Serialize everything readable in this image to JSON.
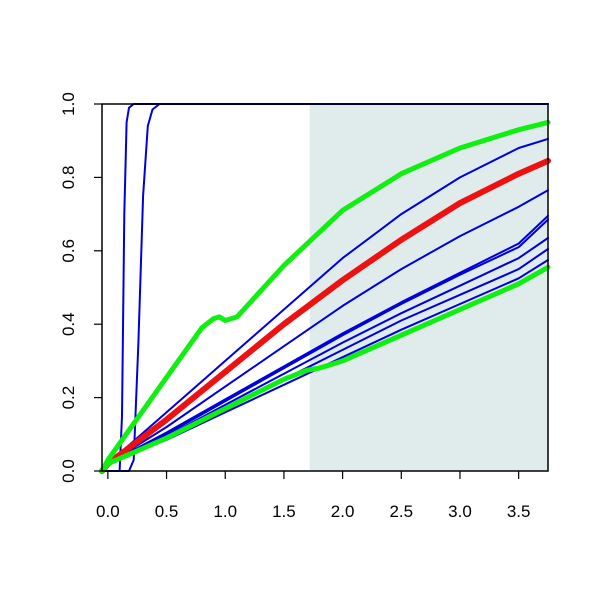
{
  "chart_data": {
    "type": "line",
    "title": "",
    "xlabel": "",
    "ylabel": "",
    "xlim": [
      -0.05,
      3.75
    ],
    "ylim": [
      0.0,
      1.0
    ],
    "x_ticks": [
      0.0,
      0.5,
      1.0,
      1.5,
      2.0,
      2.5,
      3.0,
      3.5
    ],
    "x_tick_labels": [
      "0.0",
      "0.5",
      "1.0",
      "1.5",
      "2.0",
      "2.5",
      "3.0",
      "3.5"
    ],
    "y_ticks": [
      0.0,
      0.2,
      0.4,
      0.6,
      0.8,
      1.0
    ],
    "y_tick_labels": [
      "0.0",
      "0.2",
      "0.4",
      "0.6",
      "0.8",
      "1.0"
    ],
    "grid": false,
    "legend": "none",
    "shaded_region": {
      "x_from": 1.72,
      "x_to": 3.75,
      "color": "#e0ecec"
    },
    "colors": {
      "blue": "#0000dd",
      "red": "#ee1111",
      "green": "#11ee11",
      "axis": "#000000"
    },
    "series": [
      {
        "color": "blue",
        "width": 2,
        "x": [
          -0.05,
          0.1,
          0.12,
          0.14,
          0.16,
          0.18,
          0.22,
          3.75
        ],
        "y": [
          0.0,
          0.0,
          0.15,
          0.7,
          0.95,
          0.99,
          1.0,
          1.0
        ]
      },
      {
        "color": "blue",
        "width": 2,
        "x": [
          -0.05,
          0.18,
          0.22,
          0.26,
          0.3,
          0.34,
          0.38,
          0.44,
          3.75
        ],
        "y": [
          0.0,
          0.0,
          0.03,
          0.35,
          0.75,
          0.94,
          0.985,
          1.0,
          1.0
        ]
      },
      {
        "color": "blue",
        "width": 2,
        "x": [
          -0.05,
          0.0,
          0.5,
          1.0,
          1.5,
          2.0,
          2.5,
          3.0,
          3.5,
          3.75
        ],
        "y": [
          0.0,
          0.02,
          0.16,
          0.3,
          0.44,
          0.58,
          0.7,
          0.8,
          0.88,
          0.905
        ]
      },
      {
        "color": "blue",
        "width": 2,
        "x": [
          -0.05,
          0.0,
          0.5,
          1.0,
          1.5,
          2.0,
          2.5,
          3.0,
          3.5,
          3.75
        ],
        "y": [
          0.0,
          0.02,
          0.12,
          0.23,
          0.34,
          0.45,
          0.55,
          0.64,
          0.72,
          0.765
        ]
      },
      {
        "color": "blue",
        "width": 2,
        "x": [
          -0.05,
          0.0,
          0.5,
          1.0,
          1.5,
          2.0,
          2.5,
          3.0,
          3.5,
          3.75
        ],
        "y": [
          0.0,
          0.02,
          0.105,
          0.195,
          0.285,
          0.375,
          0.46,
          0.54,
          0.62,
          0.695
        ]
      },
      {
        "color": "blue",
        "width": 2,
        "x": [
          -0.05,
          0.0,
          0.5,
          1.0,
          1.5,
          2.0,
          2.5,
          3.0,
          3.5,
          3.75
        ],
        "y": [
          0.0,
          0.02,
          0.1,
          0.19,
          0.28,
          0.37,
          0.455,
          0.535,
          0.61,
          0.685
        ]
      },
      {
        "color": "blue",
        "width": 2,
        "x": [
          -0.05,
          0.0,
          0.5,
          1.0,
          1.5,
          2.0,
          2.5,
          3.0,
          3.5,
          3.75
        ],
        "y": [
          0.0,
          0.02,
          0.095,
          0.18,
          0.265,
          0.35,
          0.43,
          0.505,
          0.58,
          0.635
        ]
      },
      {
        "color": "blue",
        "width": 2,
        "x": [
          -0.05,
          0.0,
          0.5,
          1.0,
          1.5,
          2.0,
          2.5,
          3.0,
          3.5,
          3.75
        ],
        "y": [
          0.0,
          0.02,
          0.09,
          0.17,
          0.25,
          0.33,
          0.41,
          0.48,
          0.55,
          0.605
        ]
      },
      {
        "color": "blue",
        "width": 2,
        "x": [
          -0.05,
          0.0,
          0.5,
          1.0,
          1.5,
          2.0,
          2.5,
          3.0,
          3.5,
          3.75
        ],
        "y": [
          0.0,
          0.02,
          0.085,
          0.16,
          0.235,
          0.31,
          0.385,
          0.455,
          0.525,
          0.575
        ]
      },
      {
        "color": "red",
        "width": 6,
        "x": [
          -0.05,
          0.0,
          0.5,
          1.0,
          1.5,
          2.0,
          2.5,
          3.0,
          3.5,
          3.75
        ],
        "y": [
          0.0,
          0.02,
          0.14,
          0.27,
          0.4,
          0.52,
          0.63,
          0.73,
          0.81,
          0.845
        ]
      },
      {
        "color": "green",
        "width": 5,
        "x": [
          -0.05,
          0.0,
          0.4,
          0.8,
          0.9,
          0.95,
          1.0,
          1.1,
          1.5,
          2.0,
          2.5,
          3.0,
          3.5,
          3.75
        ],
        "y": [
          0.0,
          0.03,
          0.21,
          0.39,
          0.415,
          0.42,
          0.41,
          0.42,
          0.56,
          0.71,
          0.81,
          0.88,
          0.93,
          0.95
        ]
      },
      {
        "color": "green",
        "width": 5,
        "x": [
          -0.05,
          0.0,
          0.5,
          1.0,
          1.5,
          1.7,
          1.8,
          1.9,
          2.0,
          2.5,
          3.0,
          3.5,
          3.75
        ],
        "y": [
          0.0,
          0.02,
          0.09,
          0.17,
          0.25,
          0.275,
          0.28,
          0.29,
          0.3,
          0.37,
          0.44,
          0.51,
          0.555
        ]
      }
    ]
  }
}
